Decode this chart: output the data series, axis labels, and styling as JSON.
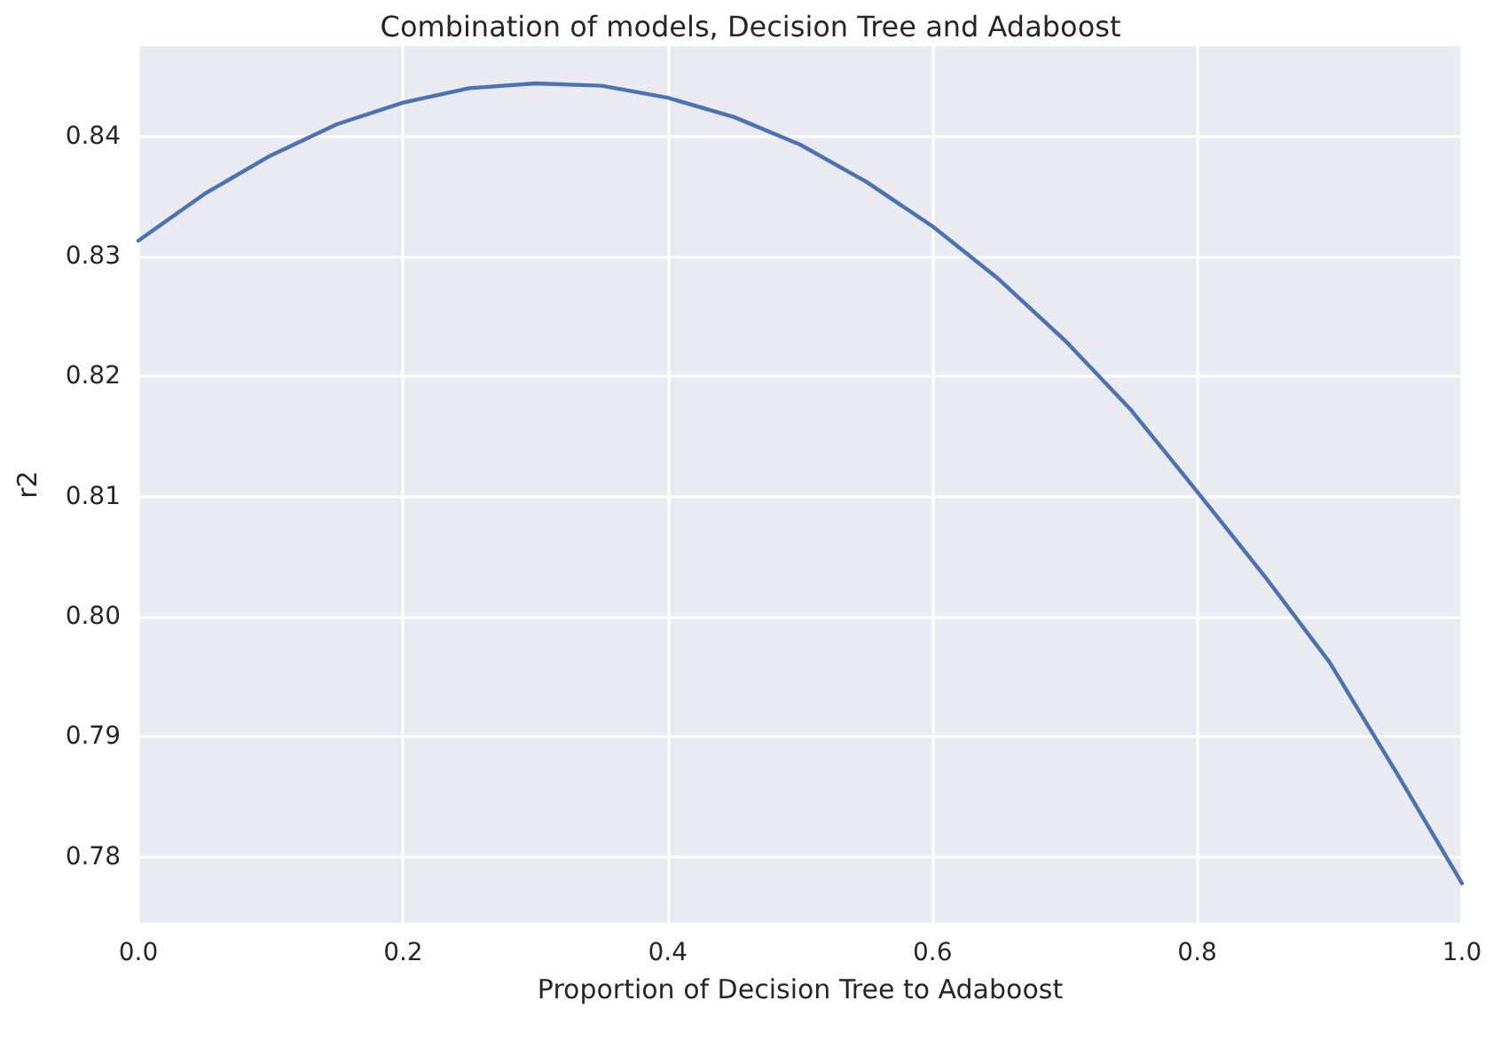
{
  "chart_data": {
    "type": "line",
    "title": "Combination of models, Decision Tree and Adaboost",
    "xlabel": "Proportion of Decision Tree to Adaboost",
    "ylabel": "r2",
    "x": [
      0,
      0.05,
      0.1,
      0.15,
      0.2,
      0.25,
      0.3,
      0.35,
      0.4,
      0.45,
      0.5,
      0.55,
      0.6,
      0.65,
      0.7,
      0.75,
      0.8,
      0.85,
      0.9,
      0.95,
      1
    ],
    "series": [
      {
        "color": "#4c72b0",
        "values": [
          0.8313,
          0.8352,
          0.8384,
          0.841,
          0.8428,
          0.844,
          0.8444,
          0.8442,
          0.8432,
          0.8416,
          0.8393,
          0.8362,
          0.8325,
          0.8281,
          0.823,
          0.8172,
          0.8104,
          0.8035,
          0.7962,
          0.7871,
          0.7778
        ]
      }
    ],
    "xlim": [
      0,
      1
    ],
    "xticks": [
      {
        "value": 0,
        "label": "0.0"
      },
      0.2,
      0.4,
      0.6,
      0.8,
      {
        "value": 1,
        "label": "1.0"
      }
    ],
    "ylim": [
      0.7745,
      0.8475
    ],
    "yticks": [
      0.78,
      0.79,
      {
        "value": 0.8,
        "label": "0.80"
      },
      0.81,
      0.82,
      0.83,
      0.84
    ],
    "grid": true,
    "marker": "none",
    "line_style": "solid"
  }
}
